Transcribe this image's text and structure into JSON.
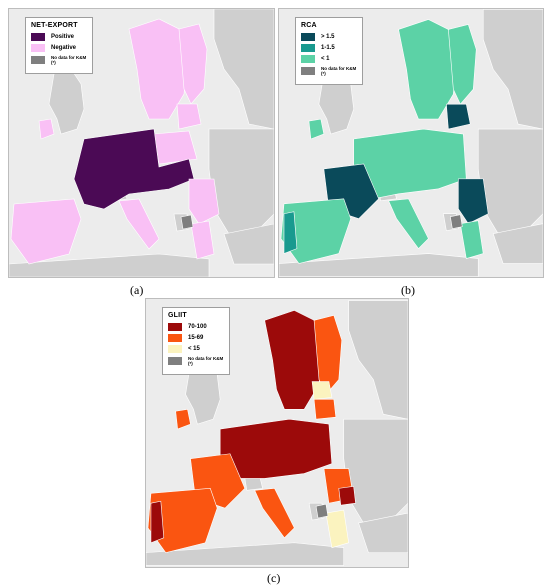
{
  "panels": [
    {
      "caption": "(a)",
      "legend": {
        "title": "NET-EXPORT",
        "items": [
          {
            "label": "Positive",
            "color": "#4b0a55"
          },
          {
            "label": "Negative",
            "color": "#f9c0f5"
          }
        ],
        "nodata": {
          "label": "No data for K&M (*)",
          "color": "#7f7f7f"
        }
      },
      "palette": {
        "c1": "#4b0a55",
        "c2": "#f9c0f5",
        "nodata": "#7f7f7f",
        "nonEU": "#cfcfcf"
      }
    },
    {
      "caption": "(b)",
      "legend": {
        "title": "RCA",
        "items": [
          {
            "label": "> 1.5",
            "color": "#0a4a5a"
          },
          {
            "label": "1-1.5",
            "color": "#199a8f"
          },
          {
            "label": "< 1",
            "color": "#5cd2a6"
          }
        ],
        "nodata": {
          "label": "No data for K&M (*)",
          "color": "#7f7f7f"
        }
      },
      "palette": {
        "c1": "#0a4a5a",
        "c2": "#199a8f",
        "c3": "#5cd2a6",
        "nodata": "#7f7f7f",
        "nonEU": "#cfcfcf"
      }
    },
    {
      "caption": "(c)",
      "legend": {
        "title": "GLIIT",
        "items": [
          {
            "label": "70-100",
            "color": "#9c0a0a"
          },
          {
            "label": "15-69",
            "color": "#fa5511"
          },
          {
            "label": "< 15",
            "color": "#fbf3bf"
          }
        ],
        "nodata": {
          "label": "No data for K&M (*)",
          "color": "#7f7f7f"
        }
      },
      "palette": {
        "c1": "#9c0a0a",
        "c2": "#fa5511",
        "c3": "#fbf3bf",
        "nodata": "#7f7f7f",
        "nonEU": "#cfcfcf"
      }
    }
  ]
}
